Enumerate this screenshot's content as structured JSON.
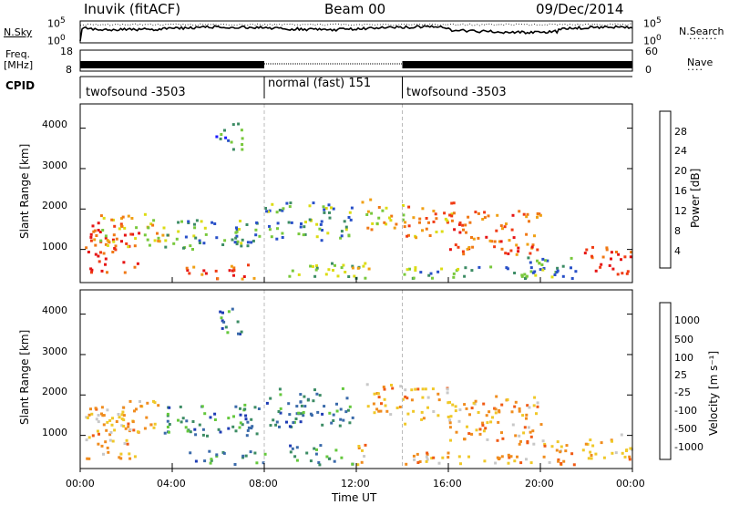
{
  "header": {
    "station": "Inuvik (fitACF)",
    "beam": "Beam 00",
    "date": "09/Dec/2014"
  },
  "nsky_panel": {
    "left_label": "N.Sky",
    "right_label": "N.Search",
    "left_ticks": [
      "10^5",
      "10^0"
    ],
    "right_ticks": [
      "10^5",
      "10^0"
    ]
  },
  "freq_panel": {
    "left_label_1": "Freq.",
    "left_label_2": "[MHz]",
    "right_label": "Nave",
    "left_ticks": [
      "18",
      "8"
    ],
    "right_ticks": [
      "60",
      "0"
    ]
  },
  "cpid_panel": {
    "label": "CPID",
    "segments": [
      {
        "name": "twofsound -3503",
        "start_h": 0,
        "end_h": 8
      },
      {
        "name": "normal (fast) 151",
        "start_h": 8,
        "end_h": 14
      },
      {
        "name": "twofsound -3503",
        "start_h": 14,
        "end_h": 24
      }
    ]
  },
  "chart_data": [
    {
      "type": "heatmap",
      "name": "power",
      "ylabel": "Slant Range [km]",
      "yticks": [
        "1000",
        "2000",
        "3000",
        "4000"
      ],
      "ylim": [
        180,
        4600
      ],
      "colorbar_label": "Power [dB]",
      "colorbar_ticks": [
        "4",
        "8",
        "12",
        "16",
        "20",
        "24",
        "28"
      ],
      "colors": [
        "#1a1aff",
        "#2850c8",
        "#3c8c64",
        "#78c83c",
        "#dcdc14",
        "#f0a014",
        "#f07814",
        "#f03c14",
        "#e61414"
      ]
    },
    {
      "type": "heatmap",
      "name": "velocity",
      "ylabel": "Slant Range [km]",
      "yticks": [
        "1000",
        "2000",
        "3000",
        "4000"
      ],
      "ylim": [
        180,
        4600
      ],
      "colorbar_label": "Velocity  [m s⁻¹]",
      "colorbar_ticks": [
        "1000",
        "500",
        "100",
        "25",
        "-25",
        "-100",
        "-500",
        "-1000"
      ],
      "colors": [
        "#1e3cb4",
        "#3a6aaa",
        "#3c8c64",
        "#64c83c",
        "#c8c8c8",
        "#f0c828",
        "#f08c1e",
        "#f05a14",
        "#e61414"
      ]
    }
  ],
  "xaxis": {
    "label": "Time UT",
    "ticks": [
      "00:00",
      "04:00",
      "08:00",
      "12:00",
      "16:00",
      "20:00",
      "00:00"
    ]
  }
}
